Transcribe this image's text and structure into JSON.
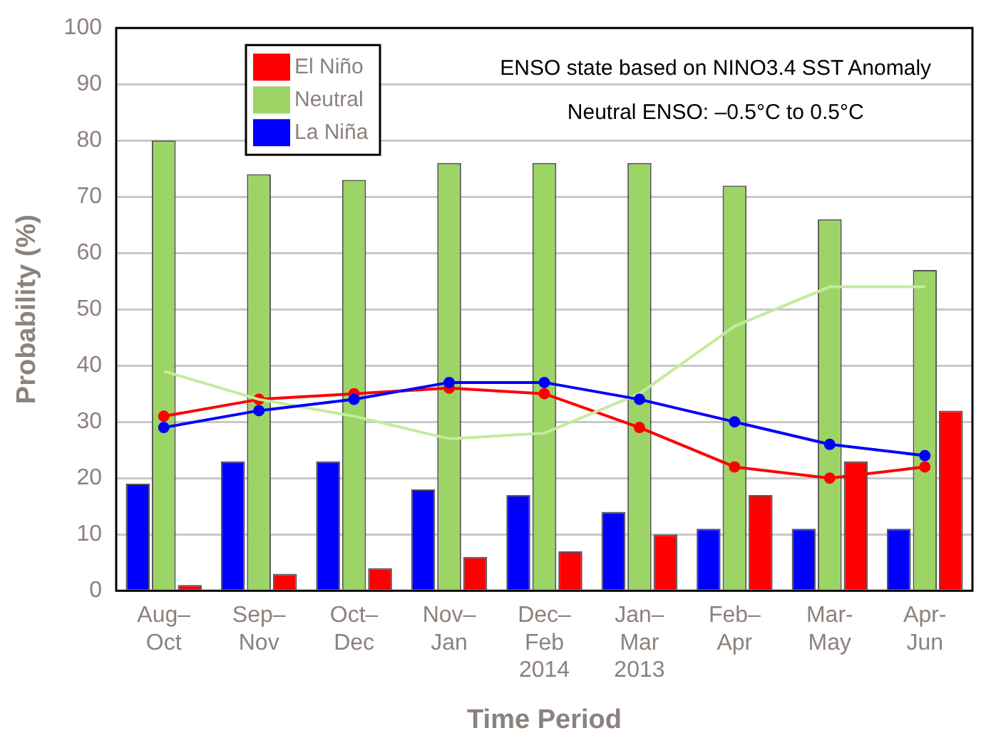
{
  "chart_data": {
    "type": "bar",
    "xlabel": "Time Period",
    "ylabel": "Probability (%)",
    "categories": [
      "Aug– Oct",
      "Sep– Nov",
      "Oct– Dec",
      "Nov– Jan",
      "Dec– Feb 2014",
      "Jan– Mar 2013",
      "Feb– Apr",
      "Mar- May",
      "Apr- Jun"
    ],
    "series": [
      {
        "name": "La Niña",
        "color": "#0000ff",
        "values": [
          19,
          23,
          23,
          18,
          17,
          14,
          11,
          11,
          11
        ]
      },
      {
        "name": "Neutral",
        "color": "#9dd466",
        "values": [
          80,
          74,
          73,
          76,
          76,
          76,
          72,
          66,
          57
        ]
      },
      {
        "name": "El Niño",
        "color": "#ff0000",
        "values": [
          1,
          3,
          4,
          6,
          7,
          10,
          17,
          23,
          32
        ]
      },
      {
        "type": "line",
        "color": "#0000ff",
        "marker": "circle",
        "values": [
          29,
          32,
          34,
          37,
          37,
          34,
          30,
          26,
          24
        ]
      },
      {
        "type": "line",
        "color": "#c2ec9c",
        "marker": "none",
        "values": [
          39,
          34,
          31,
          27,
          28,
          35,
          47,
          54,
          54
        ]
      },
      {
        "type": "line",
        "color": "#ff0000",
        "marker": "circle",
        "values": [
          31,
          34,
          35,
          36,
          35,
          29,
          22,
          20,
          22
        ]
      }
    ],
    "ylim": [
      0,
      100
    ],
    "yticks": [
      0,
      10,
      20,
      30,
      40,
      50,
      60,
      70,
      80,
      90,
      100
    ],
    "grid": "y",
    "legend": "top left",
    "annotations": [
      "ENSO state based on NINO3.4 SST Anomaly",
      "Neutral ENSO: –0.5°C to 0.5°C"
    ]
  }
}
